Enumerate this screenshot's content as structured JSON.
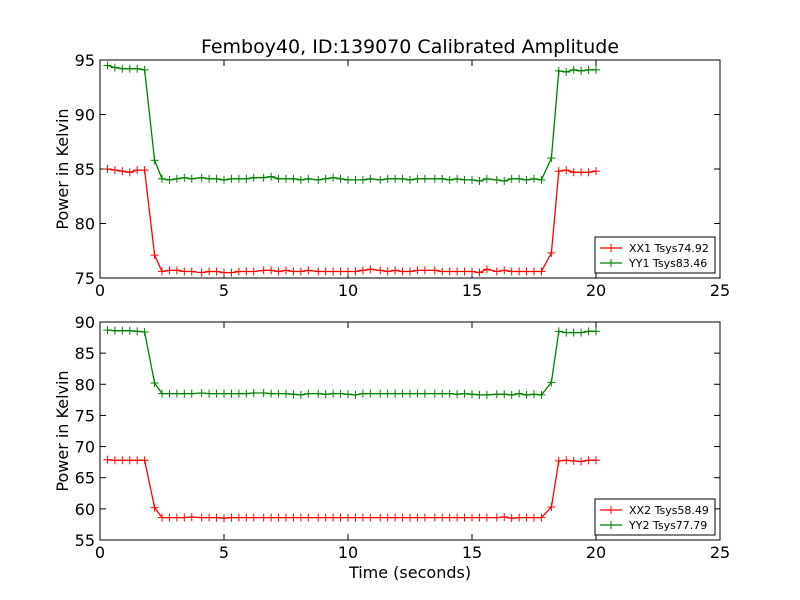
{
  "chart_data": {
    "title": "Femboy40, ID:139070 Calibrated Amplitude",
    "xlabel": "Time (seconds)",
    "colors": {
      "red": "#ff0000",
      "green": "#008000"
    },
    "panels": [
      {
        "type": "line",
        "ylabel": "Power in Kelvin",
        "xlim": [
          0,
          25
        ],
        "ylim": [
          75,
          95
        ],
        "xticks": [
          "0",
          "5",
          "10",
          "15",
          "20",
          "25"
        ],
        "yticks": [
          "75",
          "80",
          "85",
          "90",
          "95"
        ],
        "legend_position": "lower-right",
        "x": [
          0.3,
          0.6,
          0.9,
          1.2,
          1.5,
          1.8,
          2.2,
          2.5,
          2.8,
          3.1,
          3.4,
          3.7,
          4.1,
          4.4,
          4.7,
          5.0,
          5.3,
          5.6,
          5.9,
          6.2,
          6.6,
          6.9,
          7.2,
          7.5,
          7.8,
          8.1,
          8.4,
          8.8,
          9.1,
          9.4,
          9.7,
          10.0,
          10.3,
          10.6,
          10.9,
          11.3,
          11.6,
          11.9,
          12.2,
          12.5,
          12.8,
          13.1,
          13.5,
          13.8,
          14.1,
          14.4,
          14.7,
          15.0,
          15.3,
          15.6,
          16.0,
          16.3,
          16.6,
          16.9,
          17.2,
          17.5,
          17.8,
          18.2,
          18.5,
          18.8,
          19.1,
          19.4,
          19.7,
          20.0
        ],
        "series": [
          {
            "name": "XX1 Tsys74.92",
            "color": "#ff0000",
            "values": [
              85.0,
              84.9,
              84.8,
              84.7,
              84.9,
              84.9,
              77.1,
              75.6,
              75.7,
              75.7,
              75.6,
              75.6,
              75.5,
              75.6,
              75.6,
              75.5,
              75.5,
              75.6,
              75.6,
              75.6,
              75.7,
              75.7,
              75.6,
              75.7,
              75.6,
              75.6,
              75.7,
              75.6,
              75.6,
              75.6,
              75.6,
              75.6,
              75.6,
              75.7,
              75.8,
              75.7,
              75.6,
              75.7,
              75.6,
              75.6,
              75.7,
              75.7,
              75.7,
              75.6,
              75.6,
              75.6,
              75.6,
              75.6,
              75.5,
              75.8,
              75.6,
              75.7,
              75.6,
              75.6,
              75.6,
              75.6,
              75.6,
              77.3,
              84.8,
              84.9,
              84.7,
              84.7,
              84.7,
              84.8
            ]
          },
          {
            "name": "YY1 Tsys83.46",
            "color": "#008000",
            "values": [
              94.5,
              94.3,
              94.2,
              94.2,
              94.2,
              94.1,
              85.8,
              84.1,
              84.0,
              84.1,
              84.2,
              84.1,
              84.2,
              84.1,
              84.1,
              84.0,
              84.1,
              84.1,
              84.1,
              84.2,
              84.2,
              84.3,
              84.1,
              84.1,
              84.1,
              84.0,
              84.1,
              84.0,
              84.1,
              84.2,
              84.1,
              84.0,
              84.0,
              84.0,
              84.1,
              84.0,
              84.1,
              84.1,
              84.1,
              84.0,
              84.1,
              84.1,
              84.1,
              84.1,
              84.0,
              84.1,
              84.0,
              84.0,
              83.9,
              84.1,
              84.0,
              83.9,
              84.1,
              84.1,
              84.0,
              84.1,
              84.0,
              86.0,
              94.0,
              93.9,
              94.1,
              94.0,
              94.1,
              94.1
            ]
          }
        ]
      },
      {
        "type": "line",
        "ylabel": "Power in Kelvin",
        "xlim": [
          0,
          25
        ],
        "ylim": [
          55,
          90
        ],
        "xticks": [
          "0",
          "5",
          "10",
          "15",
          "20",
          "25"
        ],
        "yticks": [
          "55",
          "60",
          "65",
          "70",
          "75",
          "80",
          "85",
          "90"
        ],
        "legend_position": "lower-right",
        "x": [
          0.3,
          0.6,
          0.9,
          1.2,
          1.5,
          1.8,
          2.2,
          2.5,
          2.8,
          3.1,
          3.4,
          3.7,
          4.1,
          4.4,
          4.7,
          5.0,
          5.3,
          5.6,
          5.9,
          6.2,
          6.6,
          6.9,
          7.2,
          7.5,
          7.8,
          8.1,
          8.4,
          8.8,
          9.1,
          9.4,
          9.7,
          10.0,
          10.3,
          10.6,
          10.9,
          11.3,
          11.6,
          11.9,
          12.2,
          12.5,
          12.8,
          13.1,
          13.5,
          13.8,
          14.1,
          14.4,
          14.7,
          15.0,
          15.3,
          15.6,
          16.0,
          16.3,
          16.6,
          16.9,
          17.2,
          17.5,
          17.8,
          18.2,
          18.5,
          18.8,
          19.1,
          19.4,
          19.7,
          20.0
        ],
        "series": [
          {
            "name": "XX2 Tsys58.49",
            "color": "#ff0000",
            "values": [
              67.9,
              67.8,
              67.8,
              67.8,
              67.8,
              67.8,
              60.2,
              58.6,
              58.6,
              58.6,
              58.6,
              58.7,
              58.6,
              58.6,
              58.6,
              58.5,
              58.6,
              58.6,
              58.6,
              58.6,
              58.6,
              58.6,
              58.6,
              58.6,
              58.6,
              58.6,
              58.6,
              58.6,
              58.6,
              58.6,
              58.6,
              58.6,
              58.6,
              58.6,
              58.6,
              58.6,
              58.6,
              58.6,
              58.6,
              58.6,
              58.6,
              58.6,
              58.6,
              58.6,
              58.6,
              58.6,
              58.6,
              58.6,
              58.6,
              58.6,
              58.6,
              58.7,
              58.5,
              58.6,
              58.6,
              58.6,
              58.6,
              60.3,
              67.7,
              67.8,
              67.7,
              67.6,
              67.8,
              67.8
            ]
          },
          {
            "name": "YY2 Tsys77.79",
            "color": "#008000",
            "values": [
              88.7,
              88.6,
              88.6,
              88.6,
              88.5,
              88.4,
              80.2,
              78.5,
              78.5,
              78.5,
              78.5,
              78.5,
              78.6,
              78.5,
              78.5,
              78.5,
              78.5,
              78.5,
              78.5,
              78.6,
              78.6,
              78.5,
              78.5,
              78.5,
              78.4,
              78.3,
              78.5,
              78.5,
              78.4,
              78.5,
              78.5,
              78.4,
              78.3,
              78.5,
              78.5,
              78.5,
              78.5,
              78.5,
              78.5,
              78.5,
              78.5,
              78.5,
              78.5,
              78.5,
              78.5,
              78.4,
              78.5,
              78.4,
              78.3,
              78.3,
              78.4,
              78.4,
              78.3,
              78.5,
              78.3,
              78.4,
              78.3,
              80.3,
              88.5,
              88.3,
              88.3,
              88.3,
              88.5,
              88.5
            ]
          }
        ]
      }
    ]
  }
}
